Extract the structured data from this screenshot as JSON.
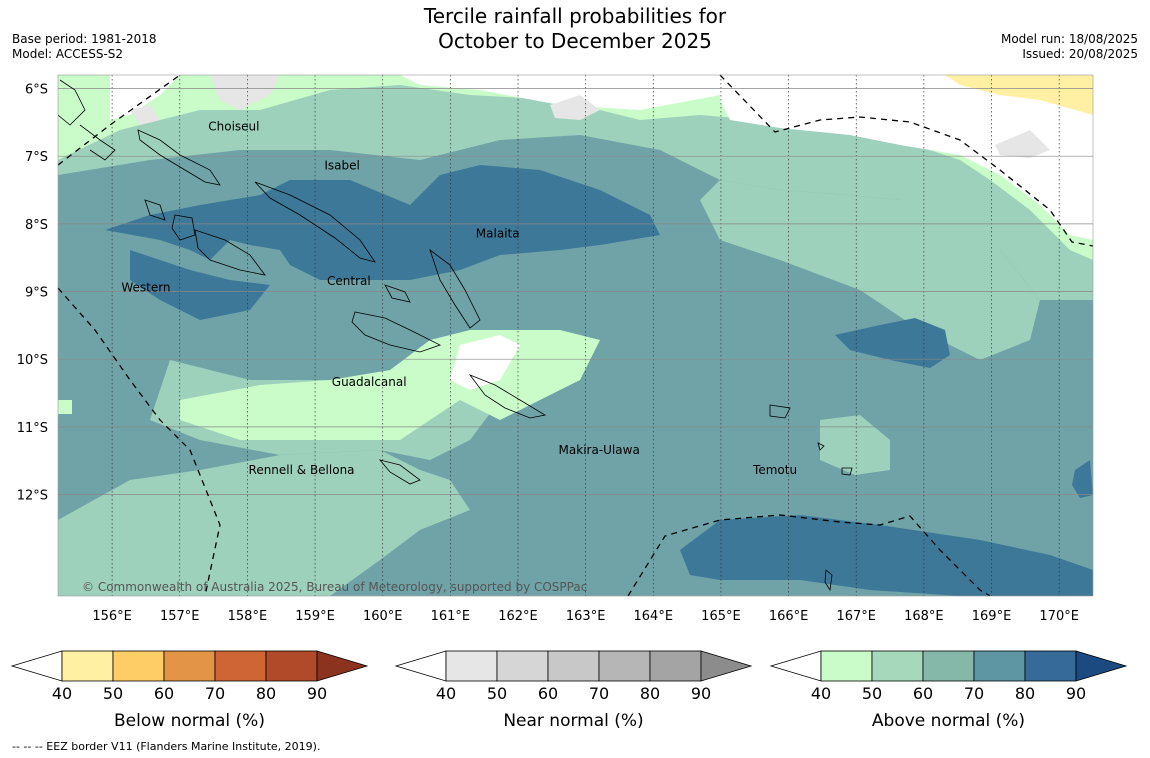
{
  "header": {
    "title_line1": "Tercile rainfall probabilities for",
    "title_line2": "October to December 2025",
    "base_period": "Base period: 1981-2018",
    "model": "Model: ACCESS-S2",
    "model_run": "Model run: 18/08/2025",
    "issued": "Issued: 20/08/2025"
  },
  "map": {
    "lat_labels": [
      "6°S",
      "7°S",
      "8°S",
      "9°S",
      "10°S",
      "11°S",
      "12°S"
    ],
    "lon_labels": [
      "156°E",
      "157°E",
      "158°E",
      "159°E",
      "160°E",
      "161°E",
      "162°E",
      "163°E",
      "164°E",
      "165°E",
      "166°E",
      "167°E",
      "168°E",
      "169°E",
      "170°E"
    ],
    "lat_values": [
      -6,
      -7,
      -8,
      -9,
      -10,
      -11,
      -12
    ],
    "lon_values": [
      156,
      157,
      158,
      159,
      160,
      161,
      162,
      163,
      164,
      165,
      166,
      167,
      168,
      169,
      170
    ],
    "extent": {
      "lon_min": 155.2,
      "lon_max": 170.5,
      "lat_min": -13.5,
      "lat_max": -5.8
    },
    "province_labels": [
      {
        "name": "Choiseul",
        "lon": 157.8,
        "lat": -6.62
      },
      {
        "name": "Isabel",
        "lon": 159.4,
        "lat": -7.2
      },
      {
        "name": "Malaita",
        "lon": 161.7,
        "lat": -8.2
      },
      {
        "name": "Western",
        "lon": 156.5,
        "lat": -9.0
      },
      {
        "name": "Central",
        "lon": 159.5,
        "lat": -8.9
      },
      {
        "name": "Guadalcanal",
        "lon": 159.8,
        "lat": -10.4
      },
      {
        "name": "Makira-Ulawa",
        "lon": 163.2,
        "lat": -11.4
      },
      {
        "name": "Temotu",
        "lon": 165.8,
        "lat": -11.7
      },
      {
        "name": "Rennell & Bellona",
        "lon": 158.8,
        "lat": -11.7
      }
    ],
    "copyright": "© Commonwealth of Australia 2025, Bureau of Meteorology, supported by COSPPac"
  },
  "colorbars": [
    {
      "label": "Below normal (%)",
      "ticks": [
        "40",
        "50",
        "60",
        "70",
        "80",
        "90"
      ],
      "colors": [
        "#fff0a3",
        "#ffcd66",
        "#e39446",
        "#cf6434",
        "#b04a28",
        "#8c3320"
      ]
    },
    {
      "label": "Near normal (%)",
      "ticks": [
        "40",
        "50",
        "60",
        "70",
        "80",
        "90"
      ],
      "colors": [
        "#e6e6e6",
        "#d6d6d6",
        "#c8c8c8",
        "#b6b6b6",
        "#a4a4a4",
        "#8c8c8c"
      ]
    },
    {
      "label": "Above normal (%)",
      "ticks": [
        "40",
        "50",
        "60",
        "70",
        "80",
        "90"
      ],
      "colors": [
        "#c9fcc9",
        "#a6d9bb",
        "#86b8aa",
        "#5f96a4",
        "#356a99",
        "#1a4a80"
      ]
    }
  ],
  "footnote": "--  --  -- EEZ border V11 (Flanders Marine Institute, 2019)."
}
